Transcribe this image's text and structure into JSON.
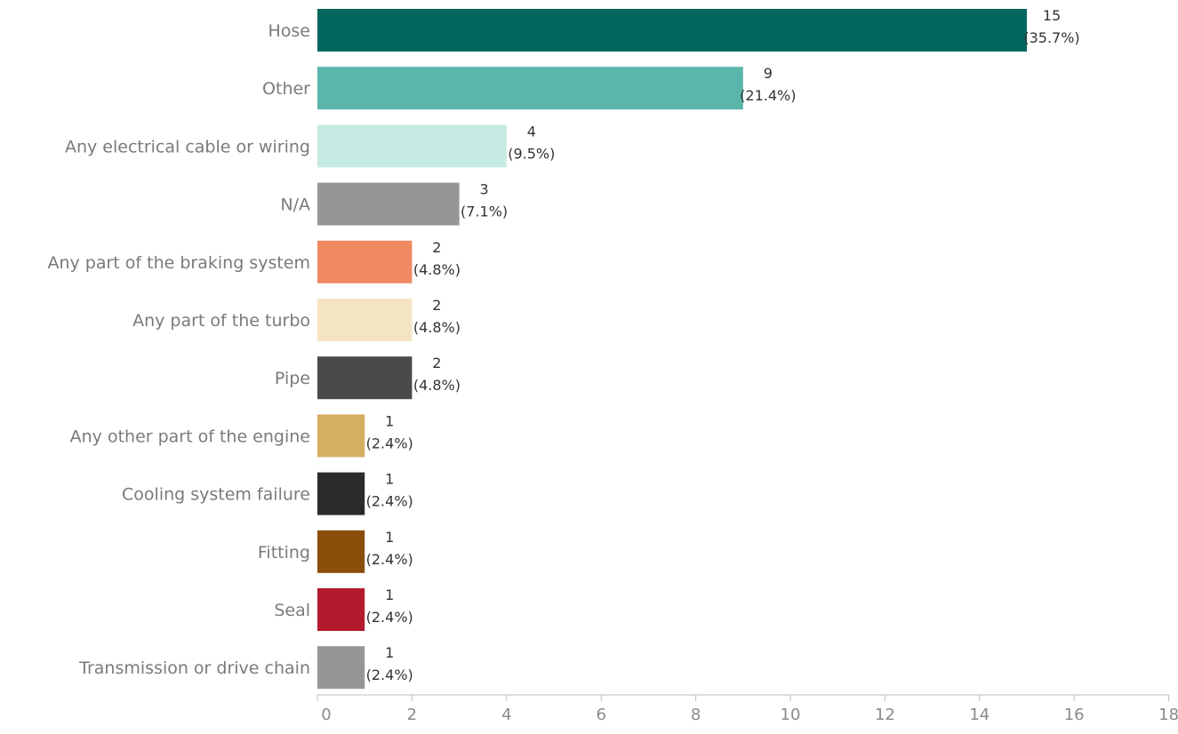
{
  "chart_data": {
    "type": "bar",
    "orientation": "horizontal",
    "title": "",
    "xlabel": "",
    "ylabel": "",
    "xlim": [
      0,
      18
    ],
    "xticks": [
      0,
      2,
      4,
      6,
      8,
      10,
      12,
      14,
      16,
      18
    ],
    "grid": false,
    "categories": [
      "Hose",
      "Other",
      "Any electrical cable or wiring",
      "N/A",
      "Any part of the braking system",
      "Any part of the turbo",
      "Pipe",
      "Any other part of the engine",
      "Cooling system failure",
      "Fitting",
      "Seal",
      "Transmission or drive chain"
    ],
    "values": [
      15,
      9,
      4,
      3,
      2,
      2,
      2,
      1,
      1,
      1,
      1,
      1
    ],
    "percent_labels": [
      "(35.7%)",
      "(21.4%)",
      "(9.5%)",
      "(7.1%)",
      "(4.8%)",
      "(4.8%)",
      "(4.8%)",
      "(2.4%)",
      "(2.4%)",
      "(2.4%)",
      "(2.4%)",
      "(2.4%)"
    ],
    "colors": [
      "#03665c",
      "#5bb5ab",
      "#c5ebe3",
      "#969696",
      "#ef8a62",
      "#f5e4c3",
      "#4a4a4a",
      "#d6ae62",
      "#2b2b2b",
      "#8a4e0b",
      "#b41a2e",
      "#969696"
    ]
  }
}
